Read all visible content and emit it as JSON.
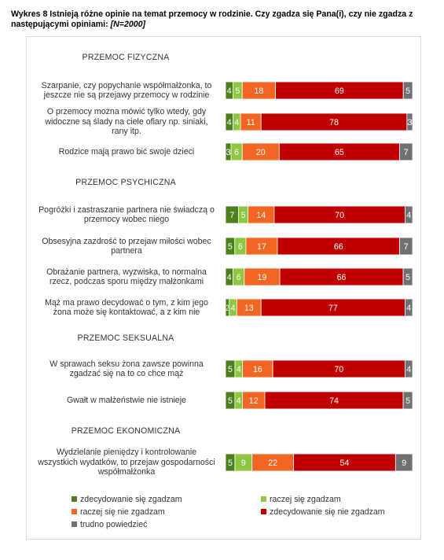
{
  "title": "Wykres 8 Istnieją różne opinie na temat przemocy w rodzinie. Czy zgadza się Pana(i), czy nie zgadza z następującymi opiniami:",
  "title_note": "[N=2000]",
  "chart_data": {
    "type": "bar",
    "stacked": true,
    "orientation": "horizontal",
    "xlim": [
      0,
      100
    ],
    "sections": [
      "PRZEMOC FIZYCZNA",
      "PRZEMOC PSYCHICZNA",
      "PRZEMOC SEKSUALNA",
      "PRZEMOC EKONOMICZNA"
    ],
    "categories": [
      "Szarpanie, czy popychanie współmałżonka, to jeszcze nie są przejawy przemocy w rodzinie",
      "O przemocy można mówić tylko wtedy, gdy widoczne są ślady na ciele ofiary np. siniaki, rany itp.",
      "Rodzice mają prawo bić swoje dzieci",
      "Pogróżki i zastraszanie partnera nie świadczą o przemocy wobec niego",
      "Obsesyjna zazdrość to przejaw miłości wobec partnera",
      "Obrażanie partnera, wyzwiska, to normalna rzecz, podczas sporu między małżonkami",
      "Mąż ma prawo decydować o tym, z kim jego żona może się kontaktować, a z kim nie",
      "W sprawach seksu żona zawsze powinna zgadzać się na to co chce mąż",
      "Gwałt w małżeństwie nie istnieje",
      "Wydzielanie pieniędzy i kontrolowanie wszystkich wydatków, to przejaw gospodarności współmałżonka"
    ],
    "category_section": [
      0,
      0,
      0,
      1,
      1,
      1,
      1,
      2,
      2,
      3
    ],
    "series": [
      {
        "name": "zdecydowanie się zgadzam",
        "color": "#4e7f1e",
        "values": [
          4,
          4,
          3,
          7,
          5,
          4,
          2,
          5,
          5,
          5
        ]
      },
      {
        "name": "raczej się zgadzam",
        "color": "#8dc63f",
        "values": [
          5,
          4,
          6,
          5,
          6,
          6,
          4,
          4,
          4,
          9
        ]
      },
      {
        "name": "raczej się nie zgadzam",
        "color": "#f26522",
        "values": [
          18,
          11,
          20,
          14,
          17,
          19,
          13,
          16,
          12,
          22
        ]
      },
      {
        "name": "zdecydowanie się nie zgadzam",
        "color": "#c00000",
        "values": [
          69,
          78,
          65,
          70,
          66,
          66,
          77,
          70,
          74,
          54
        ]
      },
      {
        "name": "trudno powiedzieć",
        "color": "#707070",
        "values": [
          5,
          3,
          7,
          4,
          7,
          5,
          4,
          4,
          5,
          9
        ]
      }
    ],
    "legend_position": "bottom",
    "grid": false
  }
}
